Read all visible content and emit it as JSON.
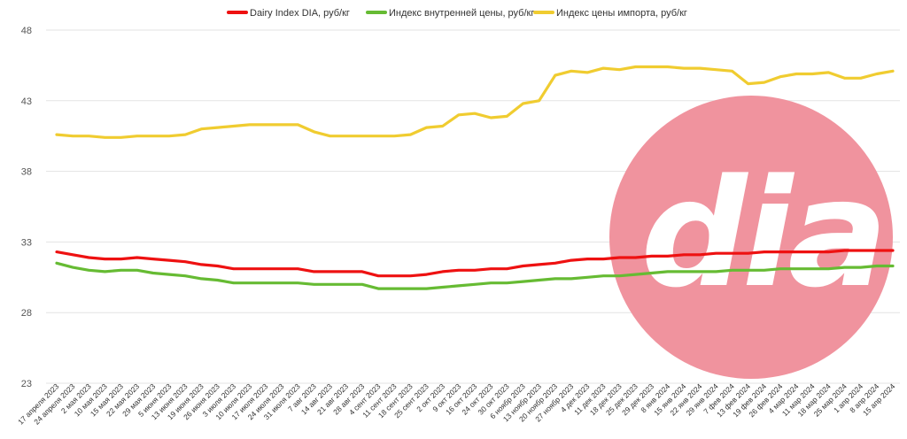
{
  "chart_data": {
    "type": "line",
    "ylim": [
      23,
      48
    ],
    "y_ticks": [
      "23",
      "28",
      "33",
      "38",
      "43",
      "48"
    ],
    "grid": true,
    "legend_position": "top-center",
    "x": [
      "17 апреля 2023",
      "24 апреля 2023",
      "2 мая 2023",
      "10 мая 2023",
      "15 мая 2023",
      "22 мая 2023",
      "29 мая 2023",
      "5 июня 2023",
      "13 июня 2023",
      "19 июня 2023",
      "26 июня 2023",
      "3 июля 2023",
      "10 июля 2023",
      "17 июля 2023",
      "24 июля 2023",
      "31 июля 2023",
      "7 авг 2023",
      "14 авг 2023",
      "21 авг 2023",
      "28 авг 2023",
      "4 сент 2023",
      "11 сент 2023",
      "18 сент 2023",
      "25 сент 2023",
      "2 окт 2023",
      "9 окт 2023",
      "16 окт 2023",
      "24 окт 2023",
      "30 окт 2023",
      "6 ноябр 2023",
      "13 ноябр 2023",
      "20 ноябр 2023",
      "27 ноябр 2023",
      "4 дек 2023",
      "11 дек 2023",
      "18 дек 2023",
      "25 дек 2023",
      "29 дек 2023",
      "8 янв 2024",
      "15 янв 2024",
      "22 янв 2024",
      "29 янв 2024",
      "7 фев 2024",
      "13 фев 2024",
      "19 фев 2024",
      "26 фев 2024",
      "4 мар 2024",
      "11 мар 2024",
      "18 мар 2024",
      "25 мар 2024",
      "1 апр 2024",
      "8 апр 2024",
      "15 апр 2024"
    ],
    "series": [
      {
        "name": "Dairy Index DIA, руб/кг",
        "color": "#ee1111",
        "values": [
          32.3,
          32.1,
          31.9,
          31.8,
          31.8,
          31.9,
          31.8,
          31.7,
          31.6,
          31.4,
          31.3,
          31.1,
          31.1,
          31.1,
          31.1,
          31.1,
          30.9,
          30.9,
          30.9,
          30.9,
          30.6,
          30.6,
          30.6,
          30.7,
          30.9,
          31.0,
          31.0,
          31.1,
          31.1,
          31.3,
          31.4,
          31.5,
          31.7,
          31.8,
          31.8,
          31.9,
          31.9,
          32.0,
          32.0,
          32.1,
          32.1,
          32.2,
          32.2,
          32.2,
          32.3,
          32.3,
          32.3,
          32.3,
          32.3,
          32.4,
          32.4,
          32.4,
          32.4
        ]
      },
      {
        "name": "Индекс внутренней цены, руб/кг",
        "color": "#66bb33",
        "values": [
          31.5,
          31.2,
          31.0,
          30.9,
          31.0,
          31.0,
          30.8,
          30.7,
          30.6,
          30.4,
          30.3,
          30.1,
          30.1,
          30.1,
          30.1,
          30.1,
          30.0,
          30.0,
          30.0,
          30.0,
          29.7,
          29.7,
          29.7,
          29.7,
          29.8,
          29.9,
          30.0,
          30.1,
          30.1,
          30.2,
          30.3,
          30.4,
          30.4,
          30.5,
          30.6,
          30.6,
          30.7,
          30.8,
          30.9,
          30.9,
          30.9,
          30.9,
          31.0,
          31.0,
          31.0,
          31.1,
          31.1,
          31.1,
          31.1,
          31.2,
          31.2,
          31.3,
          31.3
        ]
      },
      {
        "name": "Индекс цены импорта, руб/кг",
        "color": "#f0cc30",
        "values": [
          40.6,
          40.5,
          40.5,
          40.4,
          40.4,
          40.5,
          40.5,
          40.5,
          40.6,
          41.0,
          41.1,
          41.2,
          41.3,
          41.3,
          41.3,
          41.3,
          40.8,
          40.5,
          40.5,
          40.5,
          40.5,
          40.5,
          40.6,
          41.1,
          41.2,
          42.0,
          42.1,
          41.8,
          41.9,
          42.8,
          43.0,
          44.8,
          45.1,
          45.0,
          45.3,
          45.2,
          45.4,
          45.4,
          45.4,
          45.3,
          45.3,
          45.2,
          45.1,
          44.2,
          44.3,
          44.7,
          44.9,
          44.9,
          45.0,
          44.6,
          44.6,
          44.9,
          45.1
        ]
      }
    ]
  },
  "watermark": {
    "text": "dia",
    "circle_color": "#f0939e"
  }
}
